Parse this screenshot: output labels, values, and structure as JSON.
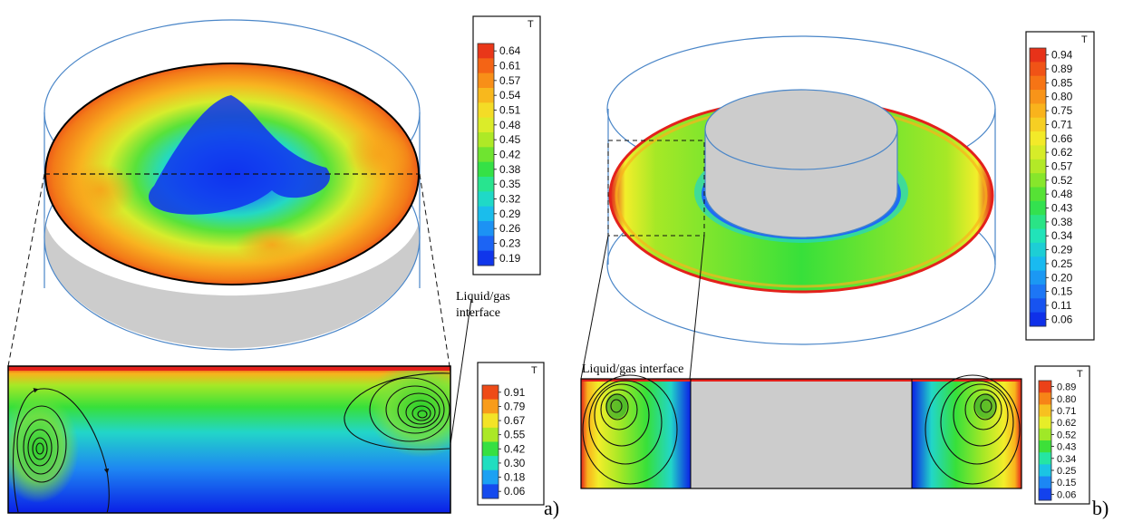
{
  "legends": {
    "a_top": {
      "title": "T",
      "ticks": [
        "0.64",
        "0.61",
        "0.57",
        "0.54",
        "0.51",
        "0.48",
        "0.45",
        "0.42",
        "0.38",
        "0.35",
        "0.32",
        "0.29",
        "0.26",
        "0.23",
        "0.19"
      ]
    },
    "a_bottom": {
      "title": "T",
      "ticks": [
        "0.91",
        "0.79",
        "0.67",
        "0.55",
        "0.42",
        "0.30",
        "0.18",
        "0.06"
      ]
    },
    "b_top": {
      "title": "T",
      "ticks": [
        "0.94",
        "0.89",
        "0.85",
        "0.80",
        "0.75",
        "0.71",
        "0.66",
        "0.62",
        "0.57",
        "0.52",
        "0.48",
        "0.43",
        "0.38",
        "0.34",
        "0.29",
        "0.25",
        "0.20",
        "0.15",
        "0.11",
        "0.06"
      ]
    },
    "b_bottom": {
      "title": "T",
      "ticks": [
        "0.89",
        "0.80",
        "0.71",
        "0.62",
        "0.52",
        "0.43",
        "0.34",
        "0.25",
        "0.15",
        "0.06"
      ]
    }
  },
  "annotations": {
    "a_line1": "Liquid/gas",
    "a_line2": "interface",
    "b": "Liquid/gas interface"
  },
  "panel_labels": {
    "a": "a)",
    "b": "b)"
  },
  "colors": {
    "jet": [
      "#0a1fe6",
      "#1e6cf5",
      "#19b9f2",
      "#22e6b4",
      "#37e03a",
      "#a6e826",
      "#f2ee2a",
      "#f9b21c",
      "#f66b14",
      "#e3211b"
    ],
    "cylinder_outline": "#4a86c8",
    "solid_gray": "#cccccc"
  }
}
